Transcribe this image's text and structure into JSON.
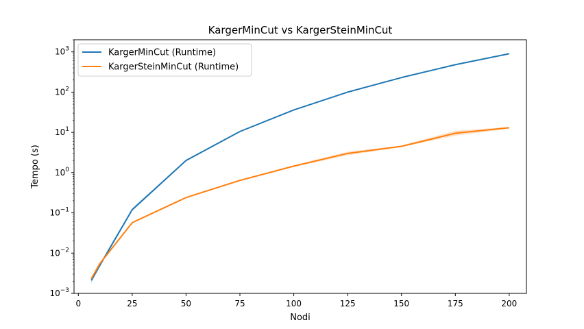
{
  "chart_data": {
    "type": "line",
    "title": "KargerMinCut vs KargerSteinMinCut",
    "xlabel": "Nodi",
    "ylabel": "Tempo (s)",
    "xlim": [
      -2,
      208
    ],
    "ylim": [
      0.001,
      2000
    ],
    "yscale": "log",
    "xticks": [
      0,
      25,
      50,
      75,
      100,
      125,
      150,
      175,
      200
    ],
    "yticks": [
      {
        "value": 0.001,
        "base": "10",
        "exp": "−3"
      },
      {
        "value": 0.01,
        "base": "10",
        "exp": "−2"
      },
      {
        "value": 0.1,
        "base": "10",
        "exp": "−1"
      },
      {
        "value": 1,
        "base": "10",
        "exp": "0"
      },
      {
        "value": 10,
        "base": "10",
        "exp": "1"
      },
      {
        "value": 100,
        "base": "10",
        "exp": "2"
      },
      {
        "value": 1000,
        "base": "10",
        "exp": "3"
      }
    ],
    "legend_position": "top-left",
    "grid": false,
    "series": [
      {
        "name": "KargerMinCut (Runtime)",
        "color": "#1f77b4",
        "x": [
          6,
          10,
          25,
          50,
          75,
          100,
          125,
          150,
          175,
          200
        ],
        "y": [
          0.0021,
          0.005,
          0.12,
          2.0,
          10.5,
          36,
          100,
          230,
          480,
          900
        ],
        "y_low": [
          0.0018,
          0.0045,
          0.11,
          1.9,
          10.2,
          35,
          98,
          225,
          470,
          890
        ],
        "y_high": [
          0.0024,
          0.0055,
          0.13,
          2.1,
          10.8,
          37,
          102,
          235,
          490,
          910
        ]
      },
      {
        "name": "KargerSteinMinCut (Runtime)",
        "color": "#ff7f0e",
        "x": [
          6,
          10,
          25,
          50,
          75,
          100,
          125,
          150,
          175,
          200
        ],
        "y": [
          0.0023,
          0.0055,
          0.057,
          0.24,
          0.64,
          1.45,
          3.0,
          4.5,
          9.5,
          13
        ],
        "y_low": [
          0.0021,
          0.0051,
          0.054,
          0.23,
          0.61,
          1.38,
          2.7,
          4.3,
          8.3,
          12.4
        ],
        "y_high": [
          0.0025,
          0.0059,
          0.06,
          0.25,
          0.67,
          1.52,
          3.3,
          4.7,
          11,
          13.6
        ]
      }
    ]
  }
}
